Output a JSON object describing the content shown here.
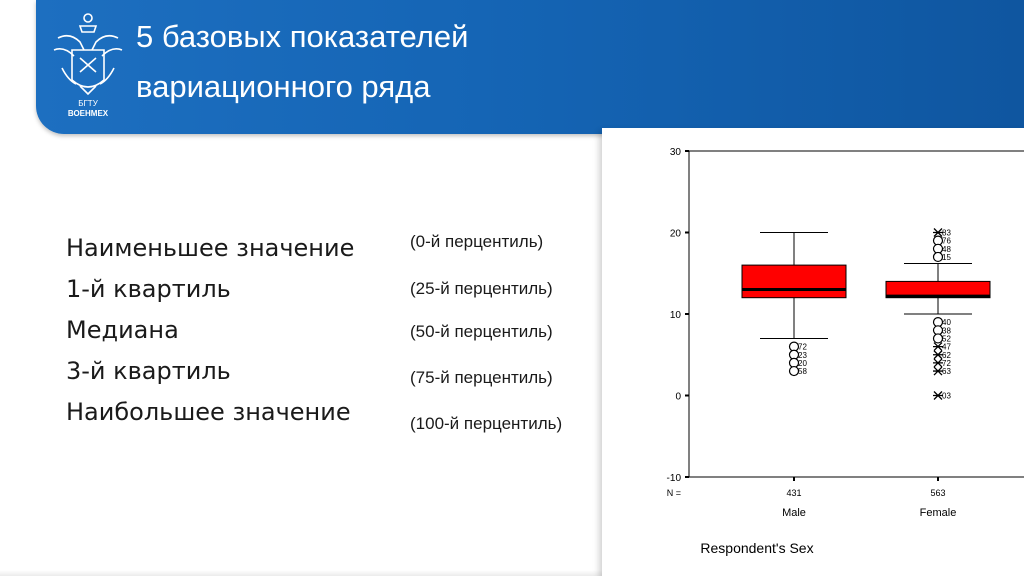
{
  "slide": {
    "title_lines": [
      "5 базовых показателей",
      "вариационного ряда"
    ],
    "logo": {
      "icon": "university-crest-icon",
      "text_line1": "БГТУ",
      "text_line2": "ВОЕНМЕХ"
    }
  },
  "stats": [
    {
      "label": "Наименьшее значение",
      "percentile": "(0-й перцентиль)"
    },
    {
      "label": "1-й квартиль",
      "percentile": "(25-й перцентиль)"
    },
    {
      "label": "Медиана",
      "percentile": "(50-й перцентиль)"
    },
    {
      "label": "3-й квартиль",
      "percentile": "(75-й перцентиль)"
    },
    {
      "label": "Наибольшее значение",
      "percentile": "(100-й перцентиль)"
    }
  ],
  "colors": {
    "header": "#1565b5",
    "box_fill": "#ff0000",
    "text": "#1a1a1a"
  },
  "chart_data": {
    "type": "boxplot",
    "xlabel": "Respondent's Sex",
    "ylabel": "",
    "ylim": [
      -10,
      30
    ],
    "yticks": [
      30,
      20,
      10,
      0,
      -10
    ],
    "n_label": "N =",
    "grid": false,
    "categories": [
      "Male",
      "Female"
    ],
    "n": [
      "431",
      "563"
    ],
    "boxes": [
      {
        "name": "Male",
        "whisker_low": 7,
        "q1": 12,
        "median": 13,
        "q3": 16,
        "whisker_high": 20,
        "outliers": [
          {
            "y": 6,
            "label": "72",
            "marker": "circle"
          },
          {
            "y": 5,
            "label": "23",
            "marker": "circle"
          },
          {
            "y": 4,
            "label": "20",
            "marker": "circle"
          },
          {
            "y": 3,
            "label": "58",
            "marker": "circle"
          }
        ]
      },
      {
        "name": "Female",
        "whisker_low": 10,
        "q1": 12,
        "median": 12.2,
        "q3": 14,
        "whisker_high": 16.2,
        "outliers": [
          {
            "y": 20,
            "label": "83",
            "marker": "star"
          },
          {
            "y": 19,
            "label": "76",
            "marker": "circle"
          },
          {
            "y": 18,
            "label": "48",
            "marker": "circle"
          },
          {
            "y": 17,
            "label": "15",
            "marker": "circle"
          },
          {
            "y": 9,
            "label": "40",
            "marker": "circle"
          },
          {
            "y": 8,
            "label": "38",
            "marker": "circle"
          },
          {
            "y": 7,
            "label": "52",
            "marker": "circle"
          },
          {
            "y": 6,
            "label": "47",
            "marker": "star"
          },
          {
            "y": 5,
            "label": "62",
            "marker": "star"
          },
          {
            "y": 4,
            "label": "72",
            "marker": "star"
          },
          {
            "y": 3,
            "label": "63",
            "marker": "star"
          },
          {
            "y": 0,
            "label": "03",
            "marker": "star"
          }
        ]
      }
    ]
  }
}
